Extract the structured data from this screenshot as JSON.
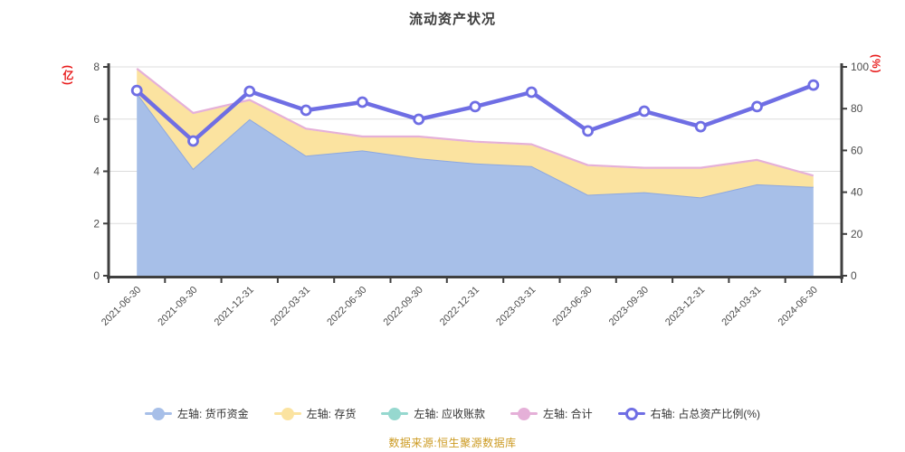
{
  "title": "流动资产状况",
  "axes": {
    "left": {
      "name": "(亿)",
      "ticks": [
        "8",
        "6",
        "4",
        "2",
        "0"
      ]
    },
    "right": {
      "name": "(%)",
      "ticks": [
        "100",
        "80",
        "60",
        "40",
        "20",
        "0"
      ]
    }
  },
  "legend": {
    "items": [
      {
        "label": "左轴: 货币资金",
        "color": "#a7bfe8",
        "hollow": false
      },
      {
        "label": "左轴: 存货",
        "color": "#fbe3a0",
        "hollow": false
      },
      {
        "label": "左轴: 应收账款",
        "color": "#96d8cf",
        "hollow": false
      },
      {
        "label": "左轴: 合计",
        "color": "#e5b0d8",
        "hollow": false
      },
      {
        "label": "右轴: 占总资产比例(%)",
        "color": "#6f6ee4",
        "hollow": true
      }
    ]
  },
  "footer": {
    "source": "数据来源:恒生聚源数据库"
  },
  "chart_data": {
    "type": "area",
    "title": "流动资产状况",
    "categories": [
      "2021-06-30",
      "2021-09-30",
      "2021-12-31",
      "2022-03-31",
      "2022-06-30",
      "2022-09-30",
      "2022-12-31",
      "2023-03-31",
      "2023-06-30",
      "2023-09-30",
      "2023-12-31",
      "2024-03-31",
      "2024-06-30"
    ],
    "series": [
      {
        "name": "货币资金",
        "axis": "left",
        "type": "area",
        "stacked": true,
        "color": "#a7bfe8",
        "values": [
          7.0,
          4.1,
          6.0,
          4.6,
          4.8,
          4.5,
          4.3,
          4.2,
          3.1,
          3.2,
          3.0,
          3.5,
          3.4
        ]
      },
      {
        "name": "存货",
        "axis": "left",
        "type": "area",
        "stacked": true,
        "color": "#fbe3a0",
        "values": [
          0.9,
          2.1,
          0.7,
          1.0,
          0.5,
          0.8,
          0.8,
          0.8,
          1.1,
          0.9,
          1.1,
          0.9,
          0.4
        ]
      },
      {
        "name": "应收账款",
        "axis": "left",
        "type": "area",
        "stacked": true,
        "color": "#96d8cf",
        "values": [
          0,
          0,
          0,
          0,
          0,
          0,
          0,
          0,
          0,
          0,
          0,
          0,
          0
        ]
      },
      {
        "name": "合计",
        "axis": "left",
        "type": "line",
        "stacked": false,
        "color": "#e5b0d8",
        "values": [
          7.9,
          6.2,
          6.7,
          5.6,
          5.3,
          5.3,
          5.1,
          5.0,
          4.2,
          4.1,
          4.1,
          4.4,
          3.8
        ]
      },
      {
        "name": "占总资产比例(%)",
        "axis": "right",
        "type": "line",
        "stacked": false,
        "color": "#6f6ee4",
        "values": [
          88.7,
          64.5,
          88.3,
          79.2,
          83.1,
          74.9,
          81.0,
          87.9,
          69.3,
          78.8,
          71.4,
          81.0,
          91.3
        ]
      }
    ],
    "ylim_left": [
      0,
      8
    ],
    "ylim_right": [
      0,
      100
    ],
    "grid": true,
    "legend_position": "bottom",
    "colors": {
      "blue_area": "#a7bfe8",
      "blue_edge": "#8da8e0",
      "yellow_area": "#fbe3a0",
      "teal": "#96d8cf",
      "pink_line": "#e5b0d8",
      "purple_line": "#6f6ee4",
      "grid_line": "#dcdcdc",
      "axis_line": "#3f3f3f",
      "tick_text": "#4d4d4d",
      "axis_name_red": "#e81b1b",
      "footer_text": "#cc9a21"
    }
  }
}
